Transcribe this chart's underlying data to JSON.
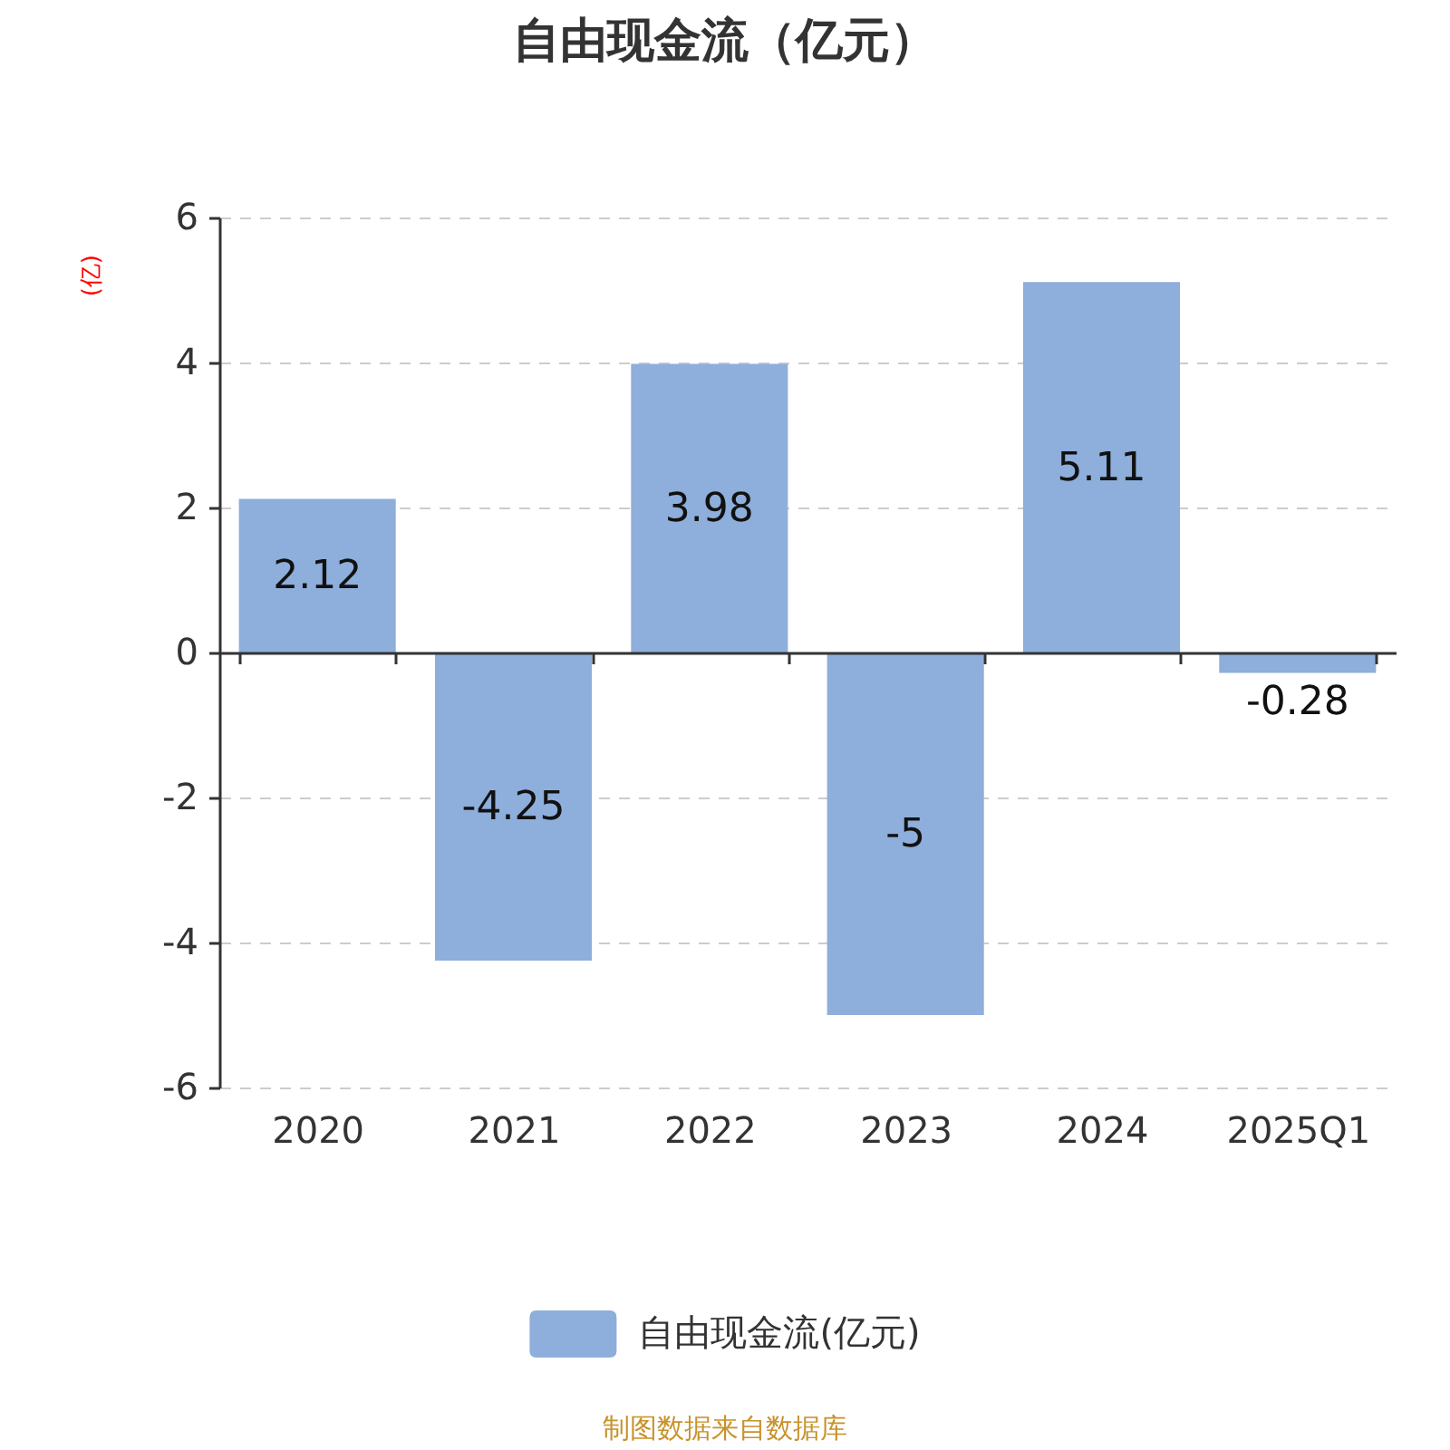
{
  "chart_data": {
    "type": "bar",
    "title": "自由现金流（亿元）",
    "ylabel": "(亿)",
    "categories": [
      "2020",
      "2021",
      "2022",
      "2023",
      "2024",
      "2025Q1"
    ],
    "series": [
      {
        "name": "自由现金流(亿元)",
        "color": "#8eaedb",
        "values": [
          2.12,
          -4.25,
          3.98,
          -5,
          5.11,
          -0.28
        ]
      }
    ],
    "ylim": [
      -6,
      6
    ],
    "yticks": [
      -6,
      -4,
      -2,
      0,
      2,
      4,
      6
    ],
    "grid": "y",
    "legend": "bottom",
    "data_labels": true,
    "annotations": [
      "制图数据来自数据库"
    ]
  }
}
